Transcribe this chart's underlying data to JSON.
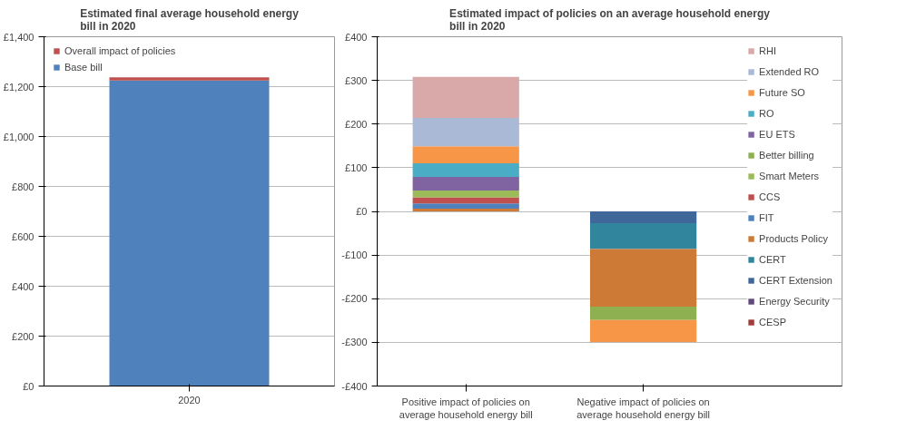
{
  "chart_data": [
    {
      "type": "bar",
      "stacked": true,
      "title": "Estimated final average household energy bill in 2020",
      "categories": [
        "2020"
      ],
      "series": [
        {
          "name": "Base bill",
          "color": "#4f81bd",
          "values": [
            1225
          ]
        },
        {
          "name": "Overall impact of policies",
          "color": "#c0504d",
          "values": [
            12
          ]
        }
      ],
      "ylim": [
        0,
        1400
      ],
      "yticks": [
        {
          "value": 0,
          "label": "£0"
        },
        {
          "value": 200,
          "label": "£200"
        },
        {
          "value": 400,
          "label": "£400"
        },
        {
          "value": 600,
          "label": "£600"
        },
        {
          "value": 800,
          "label": "£800"
        },
        {
          "value": 1000,
          "label": "£1,000"
        },
        {
          "value": 1200,
          "label": "£1,200"
        },
        {
          "value": 1400,
          "label": "£1,400"
        }
      ],
      "grid": "y",
      "legend": "top left"
    },
    {
      "type": "bar",
      "stacked": true,
      "title": "Estimated impact of policies on an average household energy bill in 2020",
      "categories": [
        "Positive impact of policies on average household energy bill",
        "Negative impact of policies on average household energy bill"
      ],
      "series": [
        {
          "name": "CESP",
          "color": "#a03c3a",
          "values": [
            null,
            null
          ]
        },
        {
          "name": "Energy Security",
          "color": "#604a7b",
          "values": [
            null,
            null
          ]
        },
        {
          "name": "CERT Extension",
          "color": "#3f6799",
          "values": [
            null,
            -27
          ]
        },
        {
          "name": "CERT",
          "color": "#31859c",
          "values": [
            null,
            -59
          ]
        },
        {
          "name": "Products Policy",
          "color": "#cc7a35",
          "values": [
            6,
            -132
          ]
        },
        {
          "name": "FIT",
          "color": "#4f81bd",
          "values": [
            12,
            null
          ]
        },
        {
          "name": "CCS",
          "color": "#c0504d",
          "values": [
            14,
            null
          ]
        },
        {
          "name": "Smart Meters",
          "color": "#9bbb59",
          "values": [
            16,
            null
          ]
        },
        {
          "name": "Better billing",
          "color": "#8fb050",
          "values": [
            null,
            -31
          ]
        },
        {
          "name": "EU ETS",
          "color": "#8064a2",
          "values": [
            31,
            null
          ]
        },
        {
          "name": "RO",
          "color": "#4bacc6",
          "values": [
            31,
            null
          ]
        },
        {
          "name": "Future SO",
          "color": "#f79646",
          "values": [
            39,
            -50
          ]
        },
        {
          "name": "Extended RO",
          "color": "#aab9d6",
          "values": [
            65,
            null
          ]
        },
        {
          "name": "RHI",
          "color": "#d9a9a9",
          "values": [
            94,
            null
          ]
        }
      ],
      "ylim": [
        -400,
        400
      ],
      "yticks": [
        {
          "value": -400,
          "label": "-£400"
        },
        {
          "value": -300,
          "label": "-£300"
        },
        {
          "value": -200,
          "label": "-£200"
        },
        {
          "value": -100,
          "label": "-£100"
        },
        {
          "value": 0,
          "label": "£0"
        },
        {
          "value": 100,
          "label": "£100"
        },
        {
          "value": 200,
          "label": "£200"
        },
        {
          "value": 300,
          "label": "£300"
        },
        {
          "value": 400,
          "label": "£400"
        }
      ],
      "grid": "y",
      "legend": "right"
    }
  ]
}
